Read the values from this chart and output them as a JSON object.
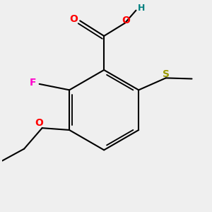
{
  "background_color": "#efefef",
  "atom_colors": {
    "O": "#ff0000",
    "F": "#ff00cc",
    "S": "#999900",
    "H": "#008080",
    "C": "#000000"
  },
  "line_color": "#000000",
  "line_width": 1.5
}
